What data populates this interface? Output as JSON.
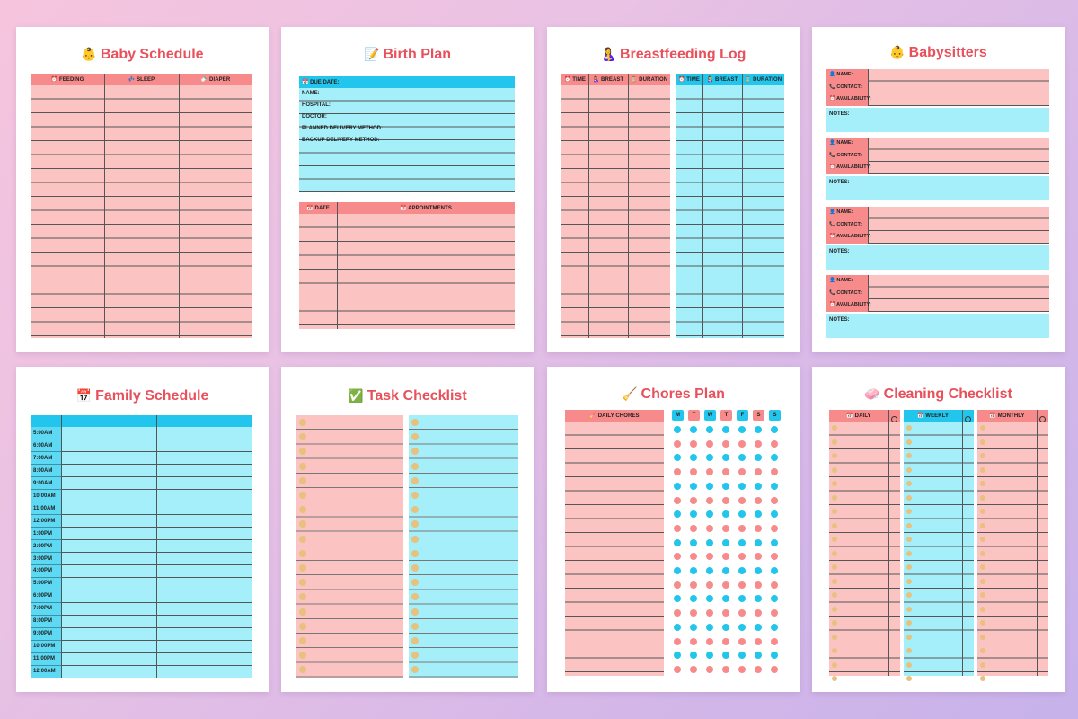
{
  "pages": {
    "baby_schedule": {
      "title": "Baby Schedule",
      "emoji": "👶",
      "columns": [
        "⏰ FEEDING",
        "💤 SLEEP",
        "🍼 DIAPER"
      ]
    },
    "birth_plan": {
      "title": "Birth Plan",
      "emoji": "📝",
      "fields": [
        "📅 DUE DATE:",
        "NAME:",
        "HOSPITAL:",
        "DOCTOR:",
        "PLANNED DELIVERY METHOD:",
        "BACKUP DELIVERY METHOD:"
      ],
      "table_columns": [
        "📅 DATE",
        "📅 APPOINTMENTS"
      ]
    },
    "breastfeeding_log": {
      "title": "Breastfeeding Log",
      "emoji": "🤱",
      "columns": [
        "⏰ TIME",
        "🤱 BREAST",
        "⏳ DURATION"
      ]
    },
    "babysitters": {
      "title": "Babysitters",
      "emoji": "👶",
      "fields": [
        "👤 NAME:",
        "📞 CONTACT:",
        "⏰ AVAILABILITY:"
      ],
      "notes_label": "NOTES:"
    },
    "family_schedule": {
      "title": "Family Schedule",
      "emoji": "📅",
      "times": [
        "5:00AM",
        "6:00AM",
        "7:00AM",
        "8:00AM",
        "9:00AM",
        "10:00AM",
        "11:00AM",
        "12:00PM",
        "1:00PM",
        "2:00PM",
        "3:00PM",
        "4:00PM",
        "5:00PM",
        "6:00PM",
        "7:00PM",
        "8:00PM",
        "9:00PM",
        "10:00PM",
        "11:00PM",
        "12:00AM"
      ]
    },
    "task_checklist": {
      "title": "Task Checklist",
      "emoji": "✅"
    },
    "chores_plan": {
      "title": "Chores Plan",
      "emoji": "🧹",
      "column": "🧹 DAILY CHORES",
      "days": [
        "M",
        "T",
        "W",
        "T",
        "F",
        "S",
        "S"
      ]
    },
    "cleaning_checklist": {
      "title": "Cleaning Checklist",
      "emoji": "🧼",
      "columns": [
        "📅 DAILY",
        "📅 WEEKLY",
        "📅 MONTHLY"
      ]
    }
  },
  "colors": {
    "pink": "#fcc3c3",
    "pink_header": "#f78b8b",
    "blue": "#a5effb",
    "blue_header": "#22c6ec",
    "title_red": "#e8505b",
    "checkbox_dot": "#e6c27e"
  }
}
